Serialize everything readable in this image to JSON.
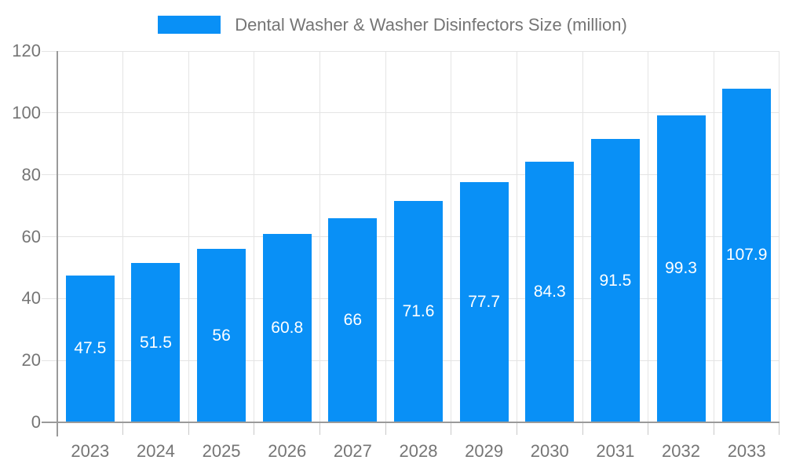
{
  "chart_data": {
    "type": "bar",
    "legend": "Dental Washer & Washer Disinfectors Size (million)",
    "legend_position": "top",
    "categories": [
      "2023",
      "2024",
      "2025",
      "2026",
      "2027",
      "2028",
      "2029",
      "2030",
      "2031",
      "2032",
      "2033"
    ],
    "series": [
      {
        "name": "Dental Washer & Washer Disinfectors Size (million)",
        "values": [
          47.5,
          51.5,
          56,
          60.8,
          66,
          71.6,
          77.7,
          84.3,
          91.5,
          99.3,
          107.9
        ],
        "value_labels": [
          "47.5",
          "51.5",
          "56",
          "60.8",
          "66",
          "71.6",
          "77.7",
          "84.3",
          "91.5",
          "99.3",
          "107.9"
        ]
      }
    ],
    "ylim": [
      0,
      120
    ],
    "yticks": [
      0,
      20,
      40,
      60,
      80,
      100,
      120
    ],
    "grid": true,
    "value_label_position": "inside-center",
    "colors": {
      "bar": "#0990f6",
      "bar_label": "#ffffff",
      "axis_line": "#9a9a9a",
      "gridline": "#e4e4e4",
      "tick": "#c9c9c9",
      "axis_text": "#757575"
    }
  }
}
